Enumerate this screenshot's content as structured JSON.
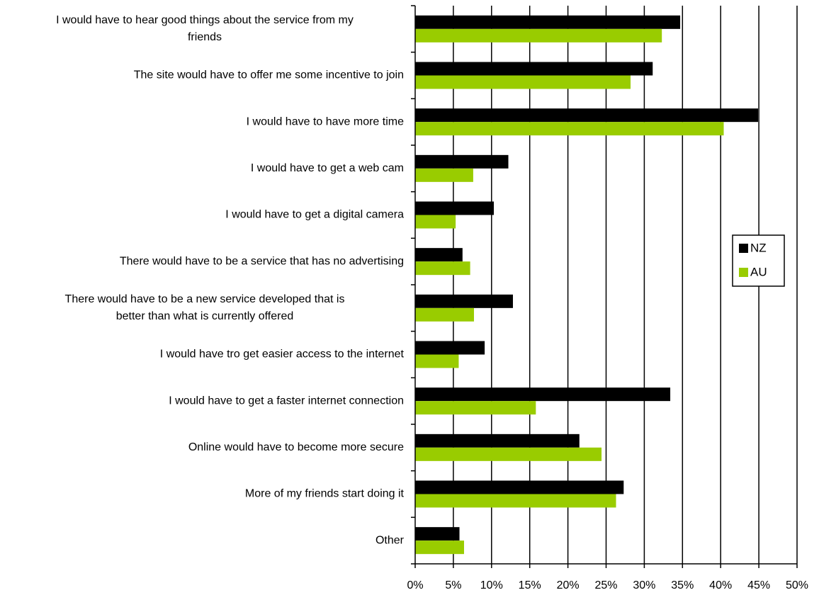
{
  "chart_data": {
    "type": "bar",
    "orientation": "horizontal",
    "categories": [
      "I would have to hear good things about the service from my friends",
      "The site would have to offer me some incentive to join",
      "I would have to have more time",
      "I would have to get a web cam",
      "I would have to get a digital camera",
      "There would have to be a service that has no advertising",
      "There would have to be a new service developed that is better than what is currently offered",
      "I would have tro get easier access to the internet",
      "I would have to get a faster internet connection",
      "Online would have to become more secure",
      "More of my friends start doing it",
      "Other"
    ],
    "category_lines": [
      [
        "I would have to hear good things about the service from my",
        "friends"
      ],
      [
        "The site would have to offer me some incentive to join"
      ],
      [
        "I would have to have more time"
      ],
      [
        "I would have to get a web cam"
      ],
      [
        "I would have to get a digital camera"
      ],
      [
        "There would have to be a service that has no advertising"
      ],
      [
        "There would have to be a new service developed that is",
        "better than what is currently offered"
      ],
      [
        "I would have tro get easier access to the internet"
      ],
      [
        "I would have to get a faster internet connection"
      ],
      [
        "Online would have to become more secure"
      ],
      [
        "More of my friends start doing it"
      ],
      [
        "Other"
      ]
    ],
    "series": [
      {
        "name": "NZ",
        "color": "#000000",
        "values": [
          34.7,
          31.1,
          44.9,
          12.2,
          10.3,
          6.2,
          12.8,
          9.1,
          33.4,
          21.5,
          27.3,
          5.8
        ]
      },
      {
        "name": "AU",
        "color": "#99cc00",
        "values": [
          32.3,
          28.2,
          40.4,
          7.6,
          5.3,
          7.2,
          7.7,
          5.7,
          15.8,
          24.4,
          26.3,
          6.4
        ]
      }
    ],
    "xlim": [
      0,
      50
    ],
    "x_ticks": [
      0,
      5,
      10,
      15,
      20,
      25,
      30,
      35,
      40,
      45,
      50
    ],
    "x_tick_labels": [
      "0%",
      "5%",
      "10%",
      "15%",
      "20%",
      "25%",
      "30%",
      "35%",
      "40%",
      "45%",
      "50%"
    ],
    "grid": "vertical",
    "legend": {
      "position": "right",
      "entries": [
        {
          "label": "NZ",
          "color": "#000000"
        },
        {
          "label": "AU",
          "color": "#99cc00"
        }
      ]
    },
    "title": "",
    "xlabel": "",
    "ylabel": ""
  }
}
